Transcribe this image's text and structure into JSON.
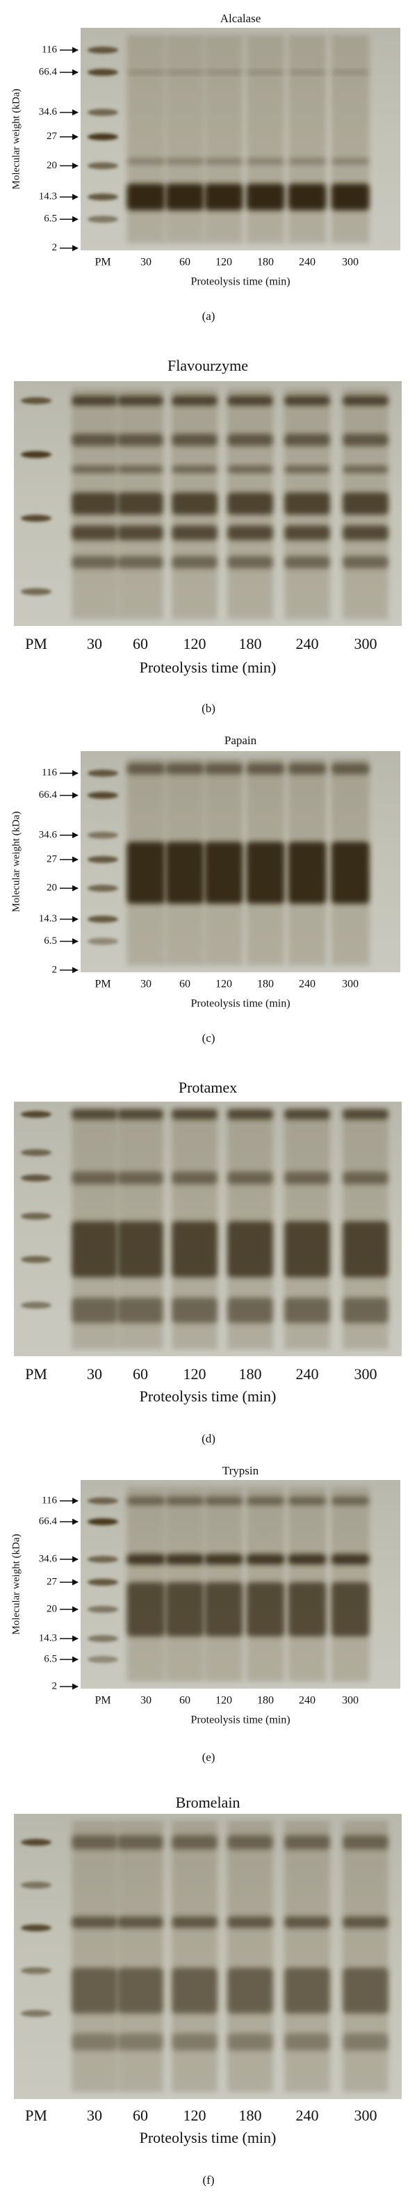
{
  "panels": [
    {
      "title": "Alcalase",
      "y_axis_label": "Molecular weight (kDa)",
      "markers": [
        "116",
        "66.4",
        "34.6",
        "27",
        "20",
        "14.3",
        "6.5",
        "2"
      ],
      "lanes": [
        "PM",
        "30",
        "60",
        "120",
        "180",
        "240",
        "300"
      ],
      "x_axis_label": "Proteolysis time (min)",
      "caption": "(a)"
    },
    {
      "title": "Flavourzyme",
      "lanes": [
        "PM",
        "30",
        "60",
        "120",
        "180",
        "240",
        "300"
      ],
      "x_axis_label": "Proteolysis time (min)",
      "caption": "(b)"
    },
    {
      "title": "Papain",
      "y_axis_label": "Molecular weight (kDa)",
      "markers": [
        "116",
        "66.4",
        "34.6",
        "27",
        "20",
        "14.3",
        "6.5",
        "2"
      ],
      "lanes": [
        "PM",
        "30",
        "60",
        "120",
        "180",
        "240",
        "300"
      ],
      "x_axis_label": "Proteolysis time (min)",
      "caption": "(c)"
    },
    {
      "title": "Protamex",
      "lanes": [
        "PM",
        "30",
        "60",
        "120",
        "180",
        "240",
        "300"
      ],
      "x_axis_label": "Proteolysis time (min)",
      "caption": "(d)"
    },
    {
      "title": "Trypsin",
      "y_axis_label": "Molecular weight (kDa)",
      "markers": [
        "116",
        "66.4",
        "34.6",
        "27",
        "20",
        "14.3",
        "6.5",
        "2"
      ],
      "lanes": [
        "PM",
        "30",
        "60",
        "120",
        "180",
        "240",
        "300"
      ],
      "x_axis_label": "Proteolysis time (min)",
      "caption": "(e)"
    },
    {
      "title": "Bromelain",
      "lanes": [
        "PM",
        "30",
        "60",
        "120",
        "180",
        "240",
        "300"
      ],
      "x_axis_label": "Proteolysis time (min)",
      "caption": "(f)"
    }
  ]
}
